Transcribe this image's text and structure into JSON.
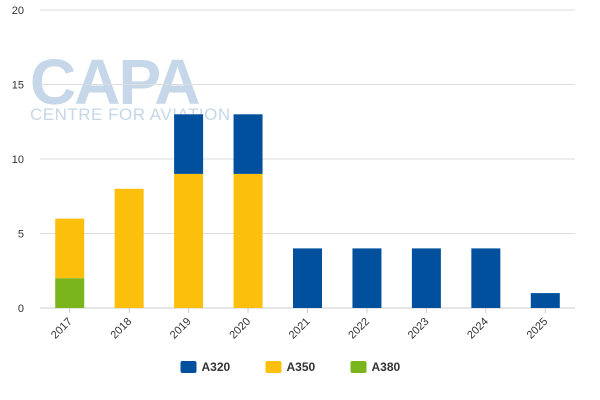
{
  "watermark": {
    "brand": "CAPA",
    "tagline": "CENTRE FOR AVIATION"
  },
  "colors": {
    "A320": "#00509d",
    "A350": "#fbbf0c",
    "A380": "#7ab51d",
    "grid": "#dddddd",
    "watermark": "#c5d7e8"
  },
  "chart_data": {
    "type": "bar",
    "stacked": true,
    "categories": [
      "2017",
      "2018",
      "2019",
      "2020",
      "2021",
      "2022",
      "2023",
      "2024",
      "2025"
    ],
    "series": [
      {
        "name": "A380",
        "values": [
          2,
          0,
          0,
          0,
          0,
          0,
          0,
          0,
          0
        ]
      },
      {
        "name": "A350",
        "values": [
          4,
          8,
          9,
          9,
          0,
          0,
          0,
          0,
          0
        ]
      },
      {
        "name": "A320",
        "values": [
          0,
          0,
          4,
          4,
          4,
          4,
          4,
          4,
          1
        ]
      }
    ],
    "y_ticks": [
      0,
      5,
      10,
      15,
      20
    ],
    "ylim": [
      0,
      20
    ],
    "grid": true,
    "legend": {
      "position": "bottom-center",
      "order": [
        "A320",
        "A350",
        "A380"
      ]
    },
    "title": "",
    "xlabel": "",
    "ylabel": ""
  }
}
